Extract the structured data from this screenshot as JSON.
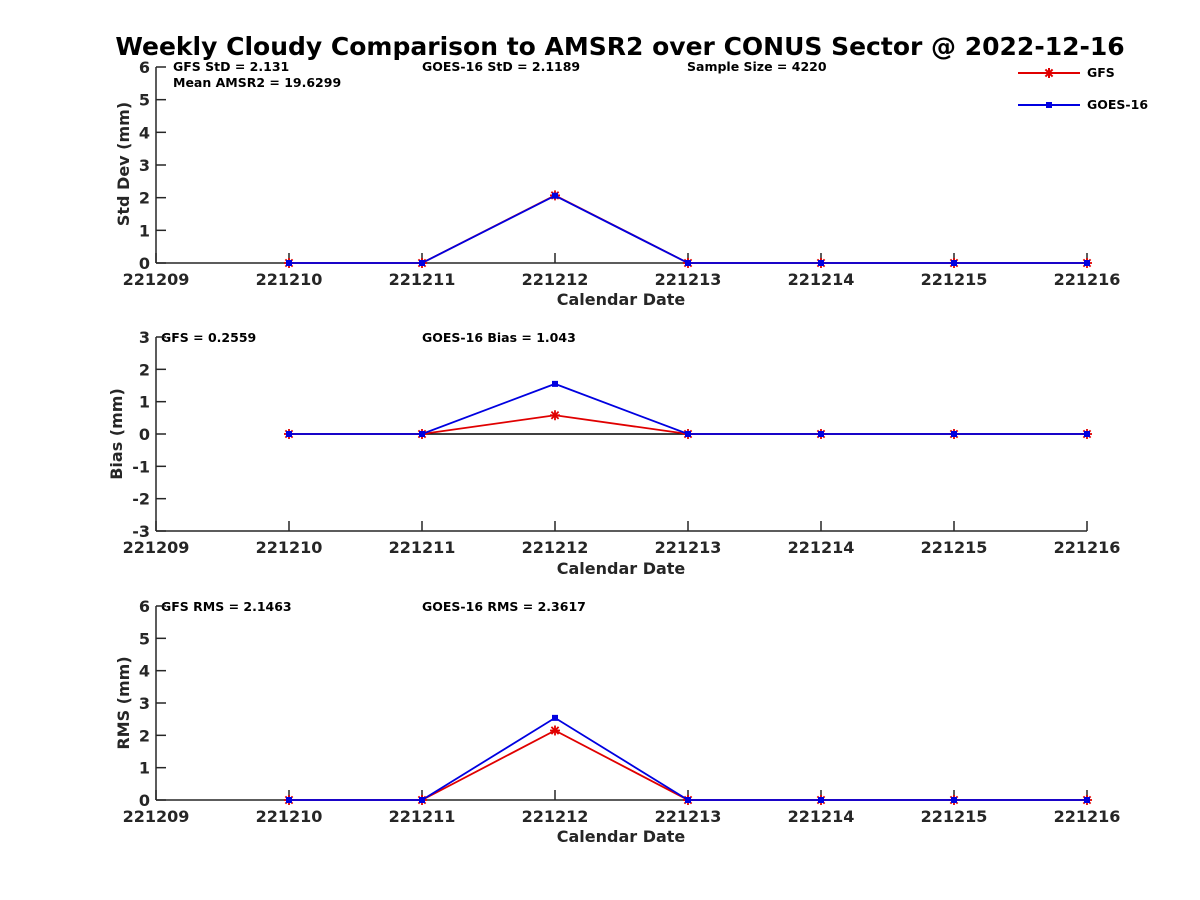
{
  "figure": {
    "title": "Weekly Cloudy Comparison to AMSR2 over CONUS Sector @ 2022-12-16"
  },
  "legend": {
    "placement": "top-right",
    "entries": [
      "GFS",
      "GOES-16"
    ]
  },
  "colors": {
    "GFS": "#e00000",
    "GOES-16": "#0000e0",
    "reference_line": "#000000",
    "axis": "#262626"
  },
  "chart_data": [
    {
      "type": "line",
      "xlabel": "Calendar Date",
      "ylabel": "Std Dev (mm)",
      "categories": [
        "221209",
        "221210",
        "221211",
        "221212",
        "221213",
        "221214",
        "221215",
        "221216"
      ],
      "ylim": [
        0,
        6
      ],
      "yticks": [
        "0",
        "1",
        "2",
        "3",
        "4",
        "5",
        "6"
      ],
      "grid": false,
      "annotations": [
        "GFS StD = 2.131",
        "Mean AMSR2 = 19.6299",
        "GOES-16 StD = 2.1189",
        "Sample Size = 4220"
      ],
      "series": [
        {
          "name": "GFS",
          "marker": "asterisk",
          "x": [
            "221210",
            "221211",
            "221212",
            "221213",
            "221214",
            "221215",
            "221216"
          ],
          "values": [
            0,
            0,
            2.07,
            0,
            0,
            0,
            0
          ]
        },
        {
          "name": "GOES-16",
          "marker": "square",
          "x": [
            "221210",
            "221211",
            "221212",
            "221213",
            "221214",
            "221215",
            "221216"
          ],
          "values": [
            0,
            0,
            2.06,
            0,
            0,
            0,
            0
          ]
        }
      ]
    },
    {
      "type": "line",
      "xlabel": "Calendar Date",
      "ylabel": "Bias (mm)",
      "categories": [
        "221209",
        "221210",
        "221211",
        "221212",
        "221213",
        "221214",
        "221215",
        "221216"
      ],
      "ylim": [
        -3,
        3
      ],
      "yticks": [
        "-3",
        "-2",
        "-1",
        "0",
        "1",
        "2",
        "3"
      ],
      "grid": false,
      "reference_line": 0,
      "annotations": [
        "GFS = 0.2559",
        "GOES-16 Bias  = 1.043"
      ],
      "series": [
        {
          "name": "GFS",
          "marker": "asterisk",
          "x": [
            "221210",
            "221211",
            "221212",
            "221213",
            "221214",
            "221215",
            "221216"
          ],
          "values": [
            0,
            0,
            0.58,
            0,
            0,
            0,
            0
          ]
        },
        {
          "name": "GOES-16",
          "marker": "square",
          "x": [
            "221210",
            "221211",
            "221212",
            "221213",
            "221214",
            "221215",
            "221216"
          ],
          "values": [
            0,
            0,
            1.55,
            0,
            0,
            0,
            0
          ]
        }
      ]
    },
    {
      "type": "line",
      "xlabel": "Calendar Date",
      "ylabel": "RMS (mm)",
      "categories": [
        "221209",
        "221210",
        "221211",
        "221212",
        "221213",
        "221214",
        "221215",
        "221216"
      ],
      "ylim": [
        0,
        6
      ],
      "yticks": [
        "0",
        "1",
        "2",
        "3",
        "4",
        "5",
        "6"
      ],
      "grid": false,
      "annotations": [
        "GFS RMS = 2.1463",
        "GOES-16 RMS = 2.3617"
      ],
      "series": [
        {
          "name": "GFS",
          "marker": "asterisk",
          "x": [
            "221210",
            "221211",
            "221212",
            "221213",
            "221214",
            "221215",
            "221216"
          ],
          "values": [
            0,
            0,
            2.15,
            0,
            0,
            0,
            0
          ]
        },
        {
          "name": "GOES-16",
          "marker": "square",
          "x": [
            "221210",
            "221211",
            "221212",
            "221213",
            "221214",
            "221215",
            "221216"
          ],
          "values": [
            0,
            0,
            2.54,
            0,
            0,
            0,
            0
          ]
        }
      ]
    }
  ]
}
